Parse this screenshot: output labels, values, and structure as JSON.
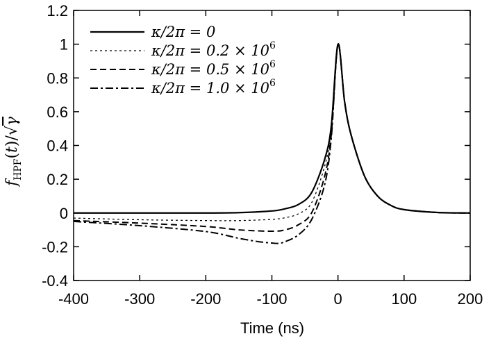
{
  "chart_data": {
    "type": "line",
    "title": "",
    "xlabel": "Time (ns)",
    "ylabel": "f_HPF(t)/√γ",
    "xlim": [
      -400,
      200
    ],
    "ylim": [
      -0.4,
      1.2
    ],
    "x_ticks": [
      -400,
      -300,
      -200,
      -100,
      0,
      100,
      200
    ],
    "x_tick_labels": [
      "-400",
      "-300",
      "-200",
      "-100",
      "0",
      "100",
      "200"
    ],
    "y_ticks": [
      -0.4,
      -0.2,
      0,
      0.2,
      0.4,
      0.6,
      0.8,
      1,
      1.2
    ],
    "y_tick_labels": [
      "-0.4",
      "-0.2",
      "0",
      "0.2",
      "0.4",
      "0.6",
      "0.8",
      "1",
      "1.2"
    ],
    "grid": false,
    "legend_position": "top-left",
    "series": [
      {
        "name": "κ/2π = 0",
        "legend_label": "κ/2π = 0",
        "dash": "solid",
        "x": [
          -400,
          -300,
          -200,
          -150,
          -100,
          -80,
          -60,
          -40,
          -20,
          -10,
          0,
          10,
          20,
          40,
          60,
          80,
          100,
          150,
          200
        ],
        "y": [
          0.0,
          0.0,
          0.0,
          0.002,
          0.012,
          0.025,
          0.05,
          0.12,
          0.32,
          0.52,
          1.0,
          0.66,
          0.46,
          0.22,
          0.1,
          0.045,
          0.02,
          0.003,
          0.0
        ]
      },
      {
        "name": "κ/2π = 0.2 × 10^6",
        "legend_label": "κ/2π = 0.2 × 10",
        "legend_exp": "6",
        "dash": "dotted",
        "x": [
          -400,
          -300,
          -200,
          -150,
          -100,
          -80,
          -60,
          -40,
          -20,
          -10,
          0,
          10,
          20,
          40,
          60,
          80,
          100,
          150,
          200
        ],
        "y": [
          -0.03,
          -0.04,
          -0.045,
          -0.045,
          -0.038,
          -0.028,
          -0.005,
          0.06,
          0.28,
          0.5,
          1.0,
          0.66,
          0.46,
          0.22,
          0.1,
          0.045,
          0.02,
          0.003,
          0.0
        ]
      },
      {
        "name": "κ/2π = 0.5 × 10^6",
        "legend_label": "κ/2π = 0.5 × 10",
        "legend_exp": "6",
        "dash": "dashed",
        "x": [
          -400,
          -300,
          -200,
          -150,
          -100,
          -80,
          -60,
          -40,
          -20,
          -10,
          0,
          10,
          20,
          40,
          60,
          80,
          100,
          150,
          200
        ],
        "y": [
          -0.045,
          -0.06,
          -0.08,
          -0.1,
          -0.108,
          -0.1,
          -0.07,
          0.0,
          0.22,
          0.47,
          1.0,
          0.66,
          0.46,
          0.22,
          0.1,
          0.045,
          0.02,
          0.003,
          0.0
        ]
      },
      {
        "name": "κ/2π = 1.0 × 10^6",
        "legend_label": "κ/2π = 1.0 × 10",
        "legend_exp": "6",
        "dash": "dashdot",
        "x": [
          -400,
          -300,
          -200,
          -150,
          -120,
          -100,
          -90,
          -80,
          -60,
          -40,
          -20,
          -10,
          0,
          10,
          20,
          40,
          60,
          80,
          100,
          150,
          200
        ],
        "y": [
          -0.05,
          -0.075,
          -0.11,
          -0.15,
          -0.17,
          -0.178,
          -0.18,
          -0.17,
          -0.13,
          -0.04,
          0.17,
          0.45,
          1.0,
          0.66,
          0.46,
          0.22,
          0.1,
          0.045,
          0.02,
          0.003,
          0.0
        ]
      }
    ]
  }
}
